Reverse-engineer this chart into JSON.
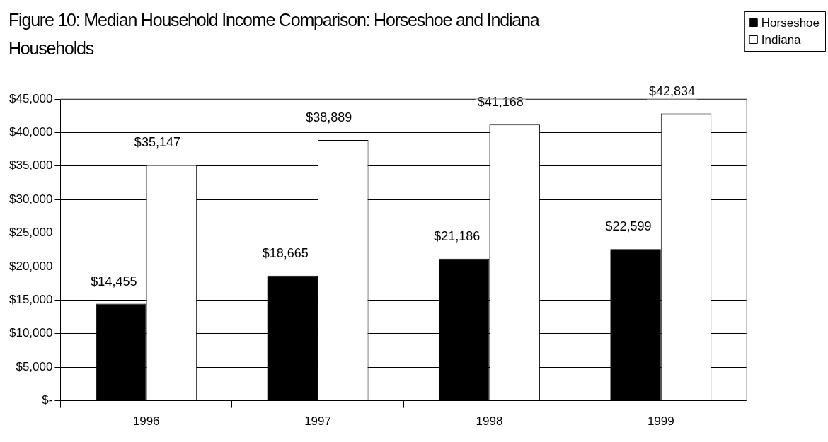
{
  "chart_data": {
    "type": "bar",
    "title": "Figure 10:  Median Household Income Comparison: Horseshoe and Indiana Households",
    "categories": [
      "1996",
      "1997",
      "1998",
      "1999"
    ],
    "series": [
      {
        "name": "Horseshoe",
        "color": "#000000",
        "values": [
          14455,
          18665,
          21186,
          22599
        ],
        "value_labels": [
          "$14,455",
          "$18,665",
          "$21,186",
          "$22,599"
        ]
      },
      {
        "name": "Indiana",
        "color": "#ffffff",
        "values": [
          35147,
          38889,
          41168,
          42834
        ],
        "value_labels": [
          "$35,147",
          "$38,889",
          "$41,168",
          "$42,834"
        ]
      }
    ],
    "ylim": [
      0,
      45000
    ],
    "yticks": [
      {
        "value": 0,
        "label": "$-"
      },
      {
        "value": 5000,
        "label": "$5,000"
      },
      {
        "value": 10000,
        "label": "$10,000"
      },
      {
        "value": 15000,
        "label": "$15,000"
      },
      {
        "value": 20000,
        "label": "$20,000"
      },
      {
        "value": 25000,
        "label": "$25,000"
      },
      {
        "value": 30000,
        "label": "$30,000"
      },
      {
        "value": 35000,
        "label": "$35,000"
      },
      {
        "value": 40000,
        "label": "$40,000"
      },
      {
        "value": 45000,
        "label": "$45,000"
      }
    ],
    "grid": "y",
    "legend": "top right"
  }
}
